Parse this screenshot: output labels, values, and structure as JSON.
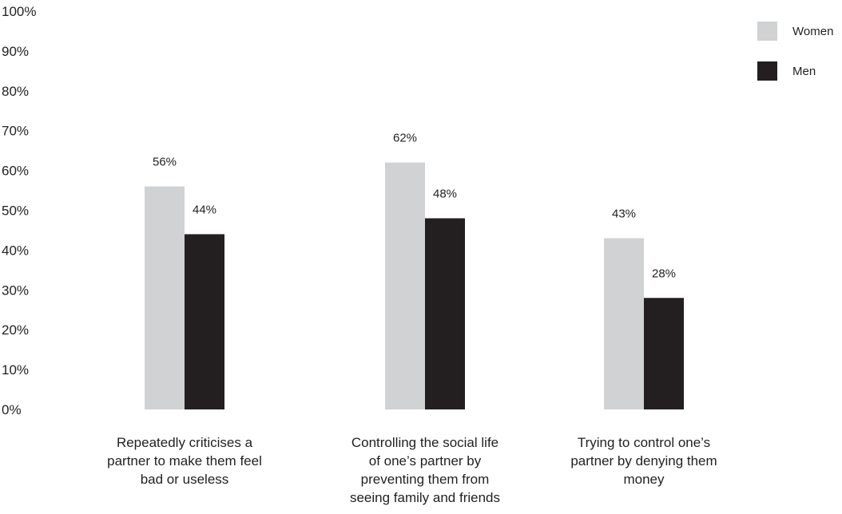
{
  "chart_data": {
    "type": "bar",
    "title": "",
    "xlabel": "",
    "ylabel": "",
    "ylim": [
      0,
      100
    ],
    "yticks": [
      "0%",
      "10%",
      "20%",
      "30%",
      "40%",
      "50%",
      "60%",
      "70%",
      "80%",
      "90%",
      "100%"
    ],
    "categories": [
      "Repeatedly criticises a partner to make them feel bad or useless",
      "Controlling the social life of one’s partner by preventing them from seeing family and friends",
      "Trying to control one’s partner by denying them money"
    ],
    "category_lines": [
      [
        "Repeatedly criticises a",
        "partner to make them feel",
        "bad or useless"
      ],
      [
        "Controlling the social life",
        "of one’s partner by",
        "preventing them from",
        "seeing family and friends"
      ],
      [
        "Trying to control one’s",
        "partner by denying them",
        "money"
      ]
    ],
    "series": [
      {
        "name": "Women",
        "color": "#d1d2d4",
        "values": [
          56,
          62,
          43
        ],
        "labels": [
          "56%",
          "62%",
          "43%"
        ]
      },
      {
        "name": "Men",
        "color": "#231f20",
        "values": [
          44,
          48,
          28
        ],
        "labels": [
          "44%",
          "48%",
          "28%"
        ]
      }
    ],
    "grid": false,
    "legend_position": "top-right"
  }
}
